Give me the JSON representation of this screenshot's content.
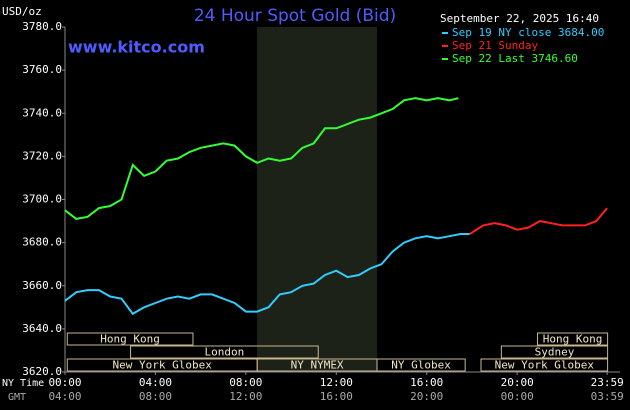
{
  "chart_data": {
    "type": "line",
    "title": "24 Hour Spot Gold (Bid)",
    "source": "www.kitco.com",
    "y_label": "USD/oz",
    "timestamp": "September 22, 2025 16:40",
    "x_label_ny": "NY Time",
    "x_label_gmt": "GMT",
    "xlim": [
      0,
      24
    ],
    "ylim": [
      3620,
      3780
    ],
    "xticks": [
      {
        "value": 0,
        "label": "00:00"
      },
      {
        "value": 4,
        "label": "04:00"
      },
      {
        "value": 8,
        "label": "08:00"
      },
      {
        "value": 12,
        "label": "12:00"
      },
      {
        "value": 16,
        "label": "16:00"
      },
      {
        "value": 20,
        "label": "20:00"
      },
      {
        "value": 23.98,
        "label": "23:59"
      }
    ],
    "gmt_labels": [
      "04:00",
      "08:00",
      "12:00",
      "16:00",
      "20:00",
      "00:00",
      "03:59"
    ],
    "yticks": [
      {
        "value": 3620,
        "label": "3620.0"
      },
      {
        "value": 3640,
        "label": "3640.0"
      },
      {
        "value": 3660,
        "label": "3660.0"
      },
      {
        "value": 3680,
        "label": "3680.0"
      },
      {
        "value": 3700,
        "label": "3700.0"
      },
      {
        "value": 3720,
        "label": "3720.0"
      },
      {
        "value": 3740,
        "label": "3740.0"
      },
      {
        "value": 3760,
        "label": "3760.0"
      },
      {
        "value": 3780,
        "label": "3780.0"
      }
    ],
    "series": [
      {
        "name": "Sep 19 NY close 3684.00",
        "color": "#33ccff",
        "x": [
          0,
          0.5,
          1,
          1.5,
          2,
          2.5,
          3,
          3.5,
          4,
          4.5,
          5,
          5.5,
          6,
          6.5,
          7,
          7.5,
          8,
          8.5,
          9,
          9.5,
          10,
          10.5,
          11,
          11.5,
          12,
          12.5,
          13,
          13.5,
          14,
          14.5,
          15,
          15.5,
          16,
          16.5,
          17,
          17.5,
          17.9
        ],
        "values": [
          3653,
          3657,
          3658,
          3658,
          3655,
          3654,
          3647,
          3650,
          3652,
          3654,
          3655,
          3654,
          3656,
          3656,
          3654,
          3652,
          3648,
          3648,
          3650,
          3656,
          3657,
          3660,
          3661,
          3665,
          3667,
          3664,
          3665,
          3668,
          3670,
          3676,
          3680,
          3682,
          3683,
          3682,
          3683,
          3684,
          3684
        ]
      },
      {
        "name": "Sep 21 Sunday",
        "color": "#ff2020",
        "x": [
          17.9,
          18.5,
          19,
          19.5,
          20,
          20.5,
          21,
          21.5,
          22,
          22.5,
          23,
          23.5,
          23.98
        ],
        "values": [
          3684,
          3688,
          3689,
          3688,
          3686,
          3687,
          3690,
          3689,
          3688,
          3688,
          3688,
          3690,
          3696
        ]
      },
      {
        "name": "Sep 22 Last 3746.60",
        "color": "#33ff33",
        "x": [
          0,
          0.5,
          1,
          1.5,
          2,
          2.5,
          3,
          3.5,
          4,
          4.5,
          5,
          5.5,
          6,
          6.5,
          7,
          7.5,
          8,
          8.5,
          9,
          9.5,
          10,
          10.5,
          11,
          11.5,
          12,
          12.5,
          13,
          13.5,
          14,
          14.5,
          15,
          15.5,
          16,
          16.5,
          17,
          17.4
        ],
        "values": [
          3695,
          3691,
          3692,
          3696,
          3697,
          3700,
          3716,
          3711,
          3713,
          3718,
          3719,
          3722,
          3724,
          3725,
          3726,
          3725,
          3720,
          3717,
          3719,
          3718,
          3719,
          3724,
          3726,
          3733,
          3733,
          3735,
          3737,
          3738,
          3740,
          3742,
          3746,
          3747,
          3746,
          3747,
          3746,
          3747
        ]
      }
    ],
    "sessions": [
      {
        "label": "Hong Kong",
        "start": 0.1,
        "end": 5.66,
        "row": 0
      },
      {
        "label": "Hong Kong",
        "start": 20.9,
        "end": 24,
        "row": 0
      },
      {
        "label": "London",
        "start": 2.9,
        "end": 11.2,
        "row": 1
      },
      {
        "label": "Sydney",
        "start": 19.3,
        "end": 24,
        "row": 1
      },
      {
        "label": "New York Globex",
        "start": 0.1,
        "end": 8.5,
        "row": 2
      },
      {
        "label": "NY NYMEX",
        "start": 8.5,
        "end": 13.8,
        "row": 2
      },
      {
        "label": "NY Globex",
        "start": 13.8,
        "end": 17.7,
        "row": 2
      },
      {
        "label": "New York Globex",
        "start": 18.4,
        "end": 24,
        "row": 2
      }
    ]
  }
}
